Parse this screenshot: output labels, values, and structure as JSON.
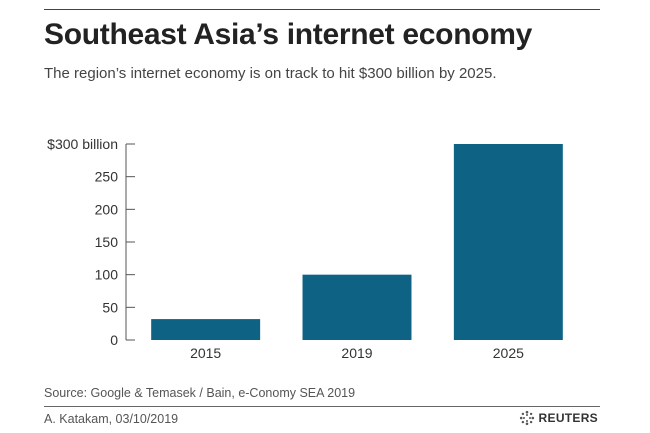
{
  "header": {
    "title": "Southeast Asia’s internet economy",
    "subtitle": "The region’s internet economy is on track to hit $300 billion by 2025."
  },
  "footer": {
    "source": "Source: Google & Temasek / Bain, e-Conomy SEA 2019",
    "credit": "A. Katakam,  03/10/2019",
    "logo_text": "REUTERS"
  },
  "colors": {
    "bar": "#0e6384",
    "axis": "#555555",
    "text": "#333333"
  },
  "chart_data": {
    "type": "bar",
    "categories": [
      "2015",
      "2019",
      "2025"
    ],
    "values": [
      32,
      100,
      300
    ],
    "ylim": [
      0,
      300
    ],
    "yticks": [
      0,
      50,
      100,
      150,
      200,
      250,
      300
    ],
    "ytick_labels": [
      "0",
      "50",
      "100",
      "150",
      "200",
      "250",
      "$300 billion"
    ],
    "grid": false,
    "legend": "none"
  }
}
